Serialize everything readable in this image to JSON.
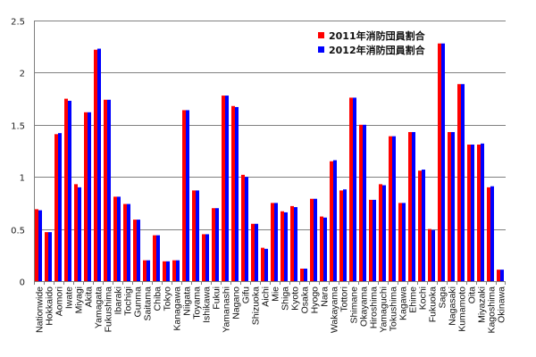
{
  "chart_data": {
    "type": "bar",
    "title": "",
    "xlabel": "",
    "ylabel": "",
    "ylim": [
      0,
      2.5
    ],
    "yticks": [
      "0",
      "0.5",
      "1",
      "1.5",
      "2",
      "2.5"
    ],
    "grid": true,
    "legend_position": "upper-right-inside",
    "categories": [
      "Nationwide",
      "Hokkaido",
      "Aomori",
      "Iwate",
      "Miyagi",
      "Akita",
      "Yamagata",
      "Fukushima",
      "Ibaraki",
      "Tochigi",
      "Gunma",
      "Saitama",
      "Chiba",
      "Tokyo",
      "Kanagawa",
      "Niigata",
      "Toyama",
      "Ishikawa",
      "Fukui",
      "Yamanashi",
      "Nagano",
      "Gifu",
      "Shizuoka",
      "Aichi",
      "Mie",
      "Shiga",
      "Kyoto",
      "Osaka",
      "Hyogo",
      "Nara",
      "Wakayama",
      "Tottori",
      "Shimane",
      "Okayama",
      "Hiroshima",
      "Yamaguchi",
      "Tokushima",
      "Kagawa",
      "Ehime",
      "Kochi",
      "Fukuoka",
      "Saga",
      "Nagasaki",
      "Kumamoto",
      "Oita",
      "Miyazaki",
      "Kagoshima",
      "Okinawa"
    ],
    "series": [
      {
        "name": "2011年消防団員割合",
        "color": "#ff0000",
        "values": [
          0.69,
          0.47,
          1.41,
          1.75,
          0.93,
          1.62,
          2.22,
          1.74,
          0.81,
          0.74,
          0.59,
          0.2,
          0.44,
          0.19,
          0.2,
          1.64,
          0.87,
          0.45,
          0.7,
          1.78,
          1.68,
          1.02,
          0.55,
          0.32,
          0.75,
          0.67,
          0.72,
          0.12,
          0.79,
          0.62,
          1.15,
          0.87,
          1.76,
          1.5,
          0.78,
          0.93,
          1.39,
          0.75,
          1.43,
          1.06,
          0.5,
          2.28,
          1.43,
          1.89,
          1.31,
          1.31,
          0.9,
          0.11
        ]
      },
      {
        "name": "2012年消防団員割合",
        "color": "#0000ff",
        "values": [
          0.68,
          0.47,
          1.42,
          1.73,
          0.9,
          1.62,
          2.23,
          1.74,
          0.81,
          0.74,
          0.59,
          0.2,
          0.44,
          0.19,
          0.2,
          1.64,
          0.87,
          0.45,
          0.7,
          1.78,
          1.67,
          1.0,
          0.55,
          0.31,
          0.75,
          0.66,
          0.71,
          0.12,
          0.79,
          0.61,
          1.16,
          0.88,
          1.76,
          1.5,
          0.78,
          0.92,
          1.39,
          0.75,
          1.43,
          1.07,
          0.49,
          2.28,
          1.43,
          1.89,
          1.31,
          1.32,
          0.91,
          0.11
        ]
      }
    ]
  },
  "colors": {
    "gridline": "#808080",
    "axis": "#808080"
  }
}
